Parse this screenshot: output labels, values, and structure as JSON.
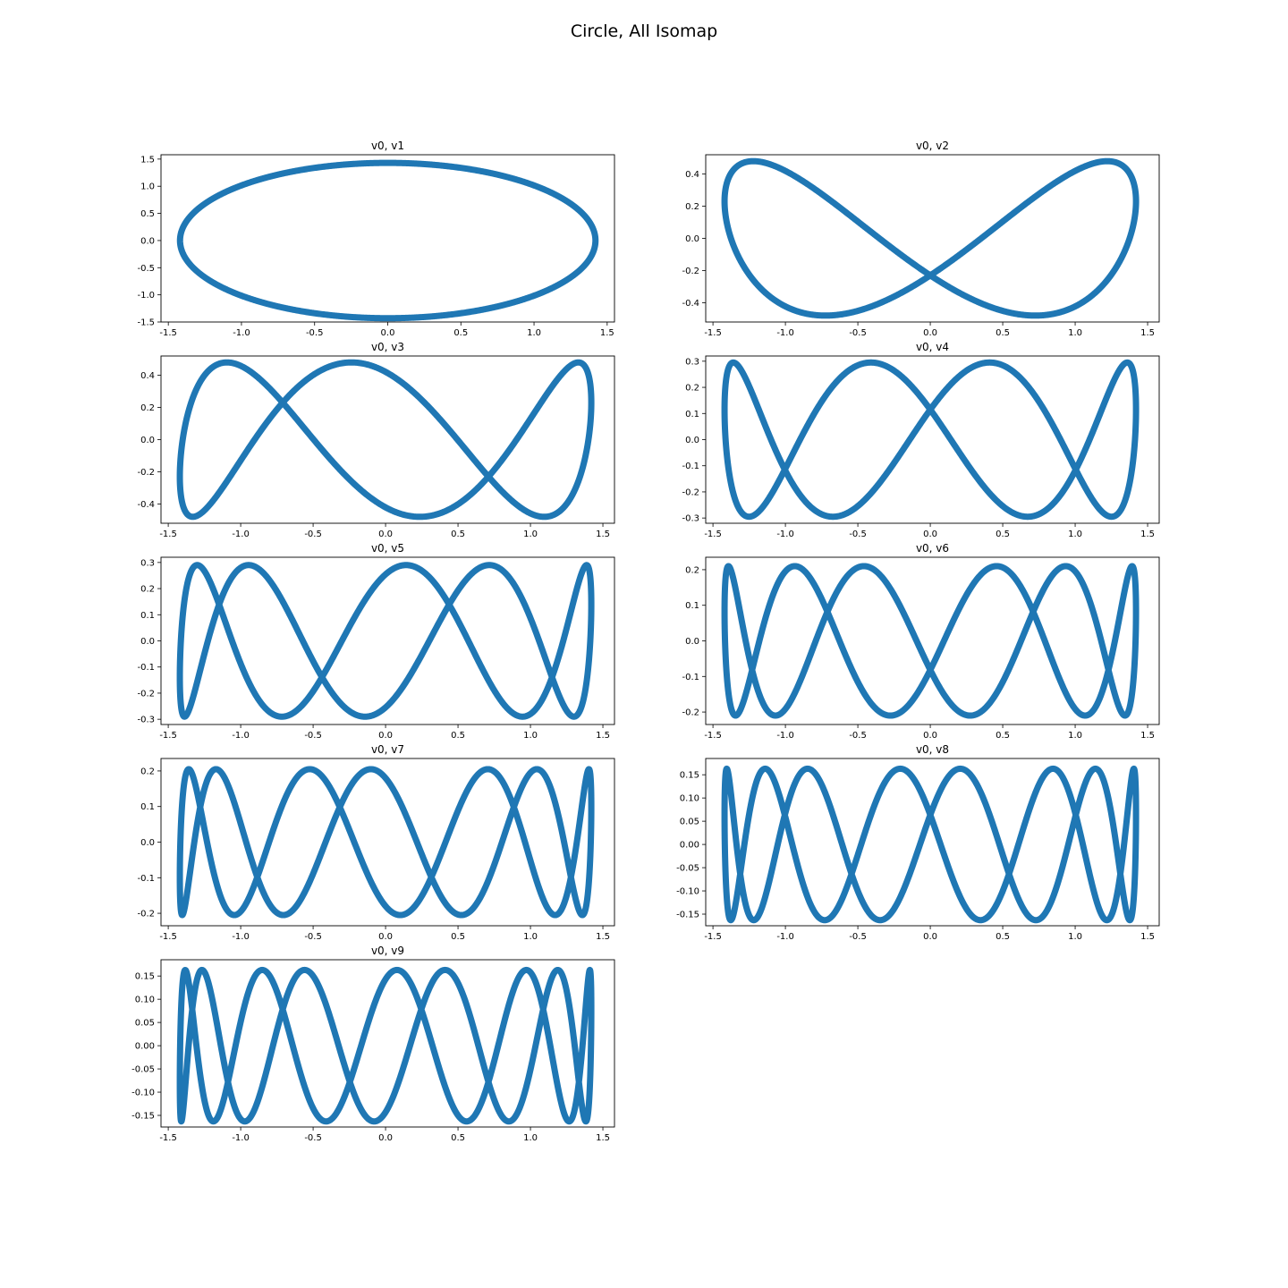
{
  "figure": {
    "title": "Circle, All Isomap",
    "series_color": "#1f77b4"
  },
  "chart_data": [
    {
      "type": "scatter",
      "title": "v0, v1",
      "xlabel": "",
      "ylabel": "",
      "xlim": [
        -1.55,
        1.55
      ],
      "ylim": [
        -1.5,
        1.58
      ],
      "xticks": [
        "-1.5",
        "-1.0",
        "-0.5",
        "0.0",
        "0.5",
        "1.0",
        "1.5"
      ],
      "yticks": [
        "-1.5",
        "-1.0",
        "-0.5",
        "0.0",
        "0.5",
        "1.0",
        "1.5"
      ],
      "curve": {
        "parametric": "x = 1.42*cos(t), y = 1.43*sin(t)",
        "x_amplitude": 1.42,
        "y_amplitude": 1.43,
        "k": 1,
        "phase": 0
      }
    },
    {
      "type": "scatter",
      "title": "v0, v2",
      "xlabel": "",
      "ylabel": "",
      "xlim": [
        -1.55,
        1.58
      ],
      "ylim": [
        -0.52,
        0.52
      ],
      "xticks": [
        "-1.5",
        "-1.0",
        "-0.5",
        "0.0",
        "0.5",
        "1.0",
        "1.5"
      ],
      "yticks": [
        "-0.4",
        "-0.2",
        "0.0",
        "0.2",
        "0.4"
      ],
      "curve": {
        "parametric": "x = 1.42*cos(t), y = 0.48*sin(2t + 0.5)",
        "x_amplitude": 1.42,
        "y_amplitude": 0.48,
        "k": 2,
        "phase": 0.5
      }
    },
    {
      "type": "scatter",
      "title": "v0, v3",
      "xlabel": "",
      "ylabel": "",
      "xlim": [
        -1.55,
        1.58
      ],
      "ylim": [
        -0.52,
        0.52
      ],
      "xticks": [
        "-1.5",
        "-1.0",
        "-0.5",
        "0.0",
        "0.5",
        "1.0",
        "1.5"
      ],
      "yticks": [
        "-0.4",
        "-0.2",
        "0.0",
        "0.2",
        "0.4"
      ],
      "curve": {
        "parametric": "x = 1.42*cos(t), y = 0.48*sin(3t + 0.5)",
        "x_amplitude": 1.42,
        "y_amplitude": 0.48,
        "k": 3,
        "phase": 0.5
      }
    },
    {
      "type": "scatter",
      "title": "v0, v4",
      "xlabel": "",
      "ylabel": "",
      "xlim": [
        -1.55,
        1.58
      ],
      "ylim": [
        -0.32,
        0.32
      ],
      "xticks": [
        "-1.5",
        "-1.0",
        "-0.5",
        "0.0",
        "0.5",
        "1.0",
        "1.5"
      ],
      "yticks": [
        "-0.3",
        "-0.2",
        "-0.1",
        "0.0",
        "0.1",
        "0.2",
        "0.3"
      ],
      "curve": {
        "parametric": "x = 1.42*cos(t), y = 0.295*sin(4t + 0.4)",
        "x_amplitude": 1.42,
        "y_amplitude": 0.295,
        "k": 4,
        "phase": 0.4
      }
    },
    {
      "type": "scatter",
      "title": "v0, v5",
      "xlabel": "",
      "ylabel": "",
      "xlim": [
        -1.55,
        1.58
      ],
      "ylim": [
        -0.32,
        0.32
      ],
      "xticks": [
        "-1.5",
        "-1.0",
        "-0.5",
        "0.0",
        "0.5",
        "1.0",
        "1.5"
      ],
      "yticks": [
        "-0.3",
        "-0.2",
        "-0.1",
        "0.0",
        "0.1",
        "0.2",
        "0.3"
      ],
      "curve": {
        "parametric": "x = 1.42*cos(t), y = 0.29*sin(5t + 0.5)",
        "x_amplitude": 1.42,
        "y_amplitude": 0.29,
        "k": 5,
        "phase": 0.5
      }
    },
    {
      "type": "scatter",
      "title": "v0, v6",
      "xlabel": "",
      "ylabel": "",
      "xlim": [
        -1.55,
        1.58
      ],
      "ylim": [
        -0.235,
        0.235
      ],
      "xticks": [
        "-1.5",
        "-1.0",
        "-0.5",
        "0.0",
        "0.5",
        "1.0",
        "1.5"
      ],
      "yticks": [
        "-0.2",
        "-0.1",
        "0.0",
        "0.1",
        "0.2"
      ],
      "curve": {
        "parametric": "x = 1.42*cos(t), y = 0.21*sin(6t + 0.4)",
        "x_amplitude": 1.42,
        "y_amplitude": 0.21,
        "k": 6,
        "phase": 0.4
      }
    },
    {
      "type": "scatter",
      "title": "v0, v7",
      "xlabel": "",
      "ylabel": "",
      "xlim": [
        -1.55,
        1.58
      ],
      "ylim": [
        -0.235,
        0.235
      ],
      "xticks": [
        "-1.5",
        "-1.0",
        "-0.5",
        "0.0",
        "0.5",
        "1.0",
        "1.5"
      ],
      "yticks": [
        "-0.2",
        "-0.1",
        "0.0",
        "0.1",
        "0.2"
      ],
      "curve": {
        "parametric": "x = 1.42*cos(t), y = 0.205*sin(7t + 0.5)",
        "x_amplitude": 1.42,
        "y_amplitude": 0.205,
        "k": 7,
        "phase": 0.5
      }
    },
    {
      "type": "scatter",
      "title": "v0, v8",
      "xlabel": "",
      "ylabel": "",
      "xlim": [
        -1.55,
        1.58
      ],
      "ylim": [
        -0.175,
        0.185
      ],
      "xticks": [
        "-1.5",
        "-1.0",
        "-0.5",
        "0.0",
        "0.5",
        "1.0",
        "1.5"
      ],
      "yticks": [
        "-0.15",
        "-0.10",
        "-0.05",
        "0.00",
        "0.05",
        "0.10",
        "0.15"
      ],
      "curve": {
        "parametric": "x = 1.42*cos(t), y = 0.163*sin(8t + 0.4)",
        "x_amplitude": 1.42,
        "y_amplitude": 0.163,
        "k": 8,
        "phase": 0.4
      }
    },
    {
      "type": "scatter",
      "title": "v0, v9",
      "xlabel": "",
      "ylabel": "",
      "xlim": [
        -1.55,
        1.58
      ],
      "ylim": [
        -0.175,
        0.185
      ],
      "xticks": [
        "-1.5",
        "-1.0",
        "-0.5",
        "0.0",
        "0.5",
        "1.0",
        "1.5"
      ],
      "yticks": [
        "-0.15",
        "-0.10",
        "-0.05",
        "0.00",
        "0.05",
        "0.10",
        "0.15"
      ],
      "curve": {
        "parametric": "x = 1.42*cos(t), y = 0.163*sin(9t + 0.5)",
        "x_amplitude": 1.42,
        "y_amplitude": 0.163,
        "k": 9,
        "phase": 0.5
      }
    }
  ]
}
